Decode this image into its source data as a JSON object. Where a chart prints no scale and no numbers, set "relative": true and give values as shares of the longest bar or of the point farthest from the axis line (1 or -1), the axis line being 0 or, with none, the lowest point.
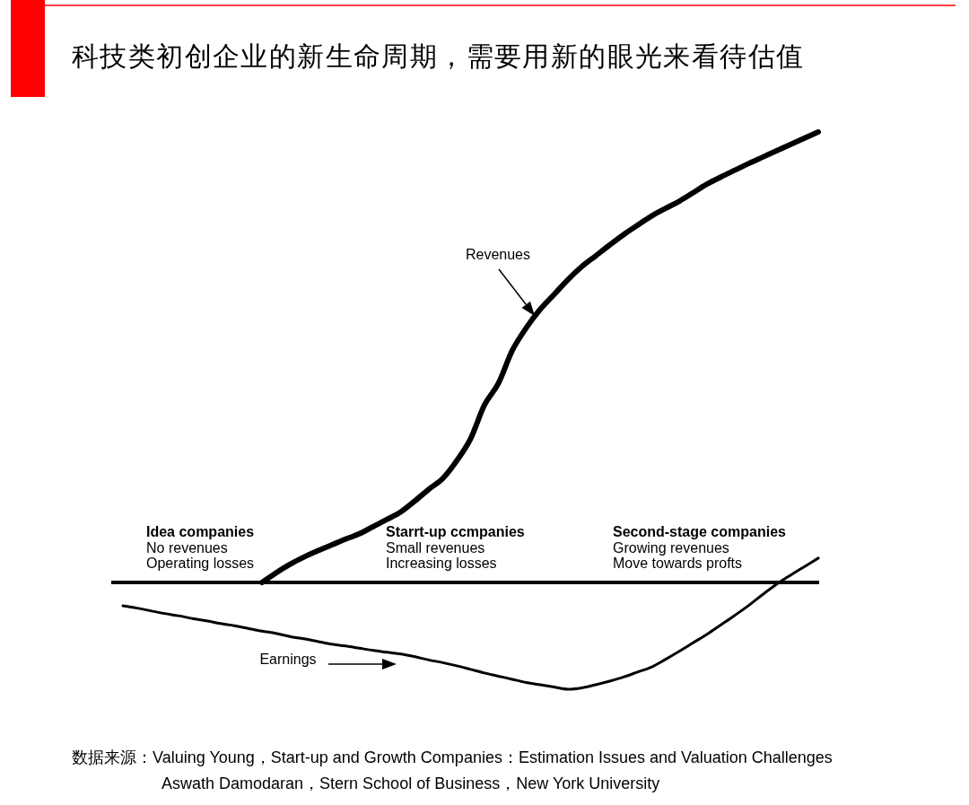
{
  "chart_data": {
    "type": "line",
    "title": "科技类初创企业的新生命周期，需要用新的眼光来看待估值",
    "relative": true,
    "categories": [
      null,
      null,
      null,
      null,
      null,
      null,
      null,
      null,
      null,
      null,
      null,
      null,
      null,
      null,
      null,
      null,
      null,
      null,
      null,
      null,
      null,
      null,
      null,
      null,
      null,
      null,
      null,
      null,
      null,
      null,
      null,
      null,
      null,
      null,
      null,
      null,
      null,
      null,
      null,
      null,
      null,
      null,
      null,
      null,
      null,
      null,
      null,
      null,
      null,
      null,
      null
    ],
    "series": [
      {
        "name": "Revenues",
        "color": "#000000",
        "values": [
          null,
          null,
          null,
          null,
          null,
          null,
          null,
          null,
          null,
          null,
          0,
          0.021,
          0.04,
          0.056,
          0.07,
          0.083,
          0.096,
          0.108,
          0.124,
          0.14,
          0.157,
          0.181,
          0.207,
          0.231,
          0.27,
          0.319,
          0.394,
          0.442,
          0.515,
          0.565,
          0.606,
          0.639,
          0.672,
          0.701,
          0.725,
          0.749,
          0.772,
          0.793,
          0.813,
          0.83,
          0.846,
          0.865,
          0.884,
          0.9,
          0.915,
          0.93,
          0.944,
          0.958,
          0.972,
          0.986,
          1
        ]
      },
      {
        "name": "Earnings",
        "color": "#000000",
        "values": [
          -0.052,
          -0.057,
          -0.063,
          -0.069,
          -0.074,
          -0.08,
          -0.085,
          -0.091,
          -0.096,
          -0.102,
          -0.108,
          -0.113,
          -0.12,
          -0.125,
          -0.131,
          -0.137,
          -0.141,
          -0.146,
          -0.151,
          -0.155,
          -0.159,
          -0.165,
          -0.172,
          -0.178,
          -0.185,
          -0.193,
          -0.201,
          -0.208,
          -0.215,
          -0.222,
          -0.227,
          -0.232,
          -0.237,
          -0.234,
          -0.227,
          -0.219,
          -0.21,
          -0.199,
          -0.188,
          -0.171,
          -0.153,
          -0.134,
          -0.115,
          -0.094,
          -0.073,
          -0.051,
          -0.027,
          -0.004,
          0.016,
          0.035,
          0.054
        ]
      }
    ],
    "annotations": [
      "Idea companies",
      "No revenues",
      "Operating losses",
      "Starrt-up ccmpanies",
      "Small revenues",
      "Increasing losses",
      "Second-stage companies",
      "Growing revenues",
      "Move towards profts",
      "数据来源：Valuing Young，Start-up and Growth Companies：Estimation Issues and Valuation Challenges",
      "Aswath Damodaran，Stern School of Business，New York University"
    ]
  }
}
